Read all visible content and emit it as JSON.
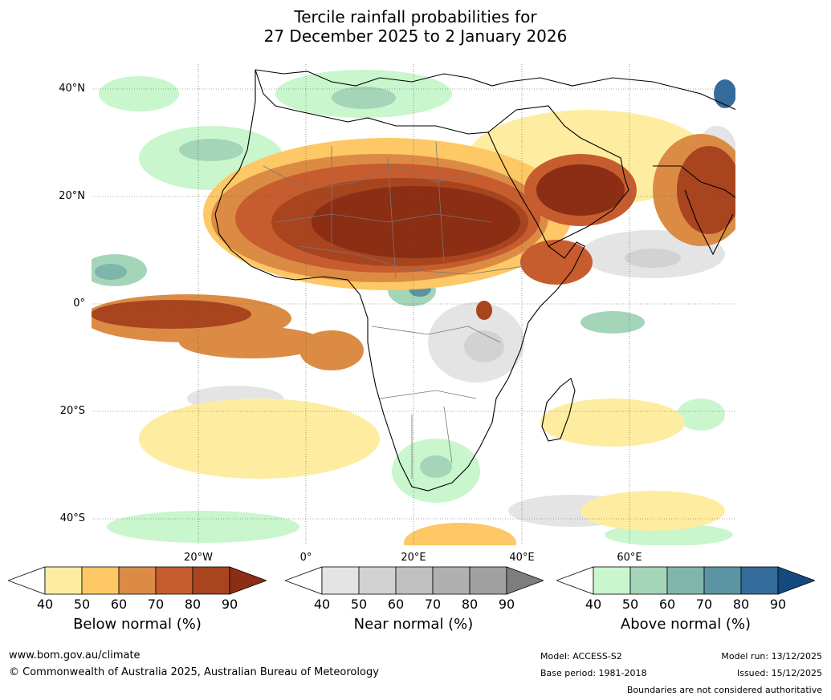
{
  "title": {
    "line1": "Tercile rainfall probabilities for",
    "line2": "27 December 2025 to 2 January 2026"
  },
  "map": {
    "lat_labels": [
      "40°N",
      "20°N",
      "0°",
      "20°S",
      "40°S"
    ],
    "lon_labels": [
      "20°W",
      "0°",
      "20°E",
      "40°E",
      "60°E"
    ]
  },
  "colorbars": [
    {
      "label": "Below normal (%)",
      "ticks": [
        "40",
        "50",
        "60",
        "70",
        "80",
        "90"
      ],
      "colors": [
        "#ffffff",
        "#feeda0",
        "#fdc865",
        "#dc8b45",
        "#c75c2e",
        "#a8451f",
        "#8b2e14"
      ]
    },
    {
      "label": "Near normal (%)",
      "ticks": [
        "40",
        "50",
        "60",
        "70",
        "80",
        "90"
      ],
      "colors": [
        "#ffffff",
        "#e4e4e4",
        "#d2d2d2",
        "#c0c0c0",
        "#b0b0b0",
        "#a0a0a0",
        "#7e7e7e"
      ]
    },
    {
      "label": "Above normal (%)",
      "ticks": [
        "40",
        "50",
        "60",
        "70",
        "80",
        "90"
      ],
      "colors": [
        "#ffffff",
        "#c9f6cd",
        "#a4d5b8",
        "#7fb6ab",
        "#5b94a2",
        "#346b9a",
        "#144a7e"
      ]
    }
  ],
  "footer": {
    "website": "www.bom.gov.au/climate",
    "copyright": "© Commonwealth of Australia 2025, Australian Bureau of Meteorology",
    "model": "Model: ACCESS-S2",
    "base_period": "Base period: 1981-2018",
    "model_run": "Model run: 13/12/2025",
    "issued": "Issued: 15/12/2025",
    "disclaimer": "Boundaries are not considered authoritative"
  },
  "palette": {
    "below": [
      "#feeda0",
      "#fdc865",
      "#dc8b45",
      "#c75c2e",
      "#a8451f",
      "#8b2e14"
    ],
    "near": [
      "#e4e4e4",
      "#d2d2d2",
      "#c0c0c0"
    ],
    "above": [
      "#c9f6cd",
      "#a4d5b8",
      "#7fb6ab",
      "#5b94a2",
      "#346b9a"
    ]
  }
}
